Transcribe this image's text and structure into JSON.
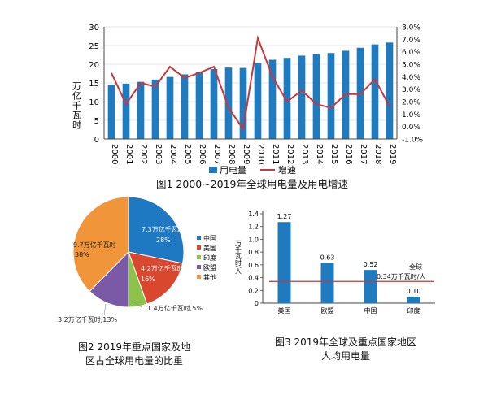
{
  "fig1": {
    "caption": "图1  2000~2019年全球用电量及用电增速",
    "y_left_label": "万亿千瓦时",
    "legend": {
      "bar": "用电量",
      "line": "增速"
    },
    "colors": {
      "bar": "#1f7bc0",
      "line": "#c8373a",
      "grid": "#cfcfcf",
      "axis": "#444444"
    },
    "y_left_ticks": [
      "0",
      "5",
      "10",
      "15",
      "20",
      "25",
      "30"
    ],
    "y_right_ticks": [
      "-1.0%",
      "0.0%",
      "1.0%",
      "2.0%",
      "3.0%",
      "4.0%",
      "5.0%",
      "6.0%",
      "7.0%",
      "8.0%"
    ]
  },
  "fig2": {
    "caption_line1": "图2  2019年重点国家及地",
    "caption_line2": "区占全球用电量的比重",
    "legend": [
      "中国",
      "美国",
      "印度",
      "欧盟",
      "其他"
    ],
    "labels": {
      "china_value": "7.3万亿千瓦时",
      "china_pct": "28%",
      "us_value": "4.2万亿千瓦时",
      "us_pct": "16%",
      "india_value": "1.4万亿千瓦时,5%",
      "eu_value": "3.2万亿千瓦时,13%",
      "other_value": "9.7万亿千瓦时",
      "other_pct": "38%"
    }
  },
  "fig3": {
    "caption_line1": "图3  2019年全球及重点国家地区",
    "caption_line2": "人均用电量",
    "y_label": "万千瓦时/人",
    "global_label_1": "全球",
    "global_label_2": "0.34万千瓦时/人",
    "y_ticks": [
      "0",
      "0.2",
      "0.4",
      "0.6",
      "0.8",
      "1.0",
      "1.2",
      "1.4"
    ]
  },
  "chart_data": [
    {
      "type": "bar",
      "title": "图1  2000~2019年全球用电量及用电增速",
      "ylabel": "万亿千瓦时",
      "categories": [
        "2000",
        "2001",
        "2002",
        "2003",
        "2004",
        "2005",
        "2006",
        "2007",
        "2008",
        "2009",
        "2010",
        "2011",
        "2012",
        "2013",
        "2014",
        "2015",
        "2016",
        "2017",
        "2018",
        "2019"
      ],
      "ylim": [
        0,
        30
      ],
      "y2lim": [
        -1.0,
        8.0
      ],
      "series": [
        {
          "name": "用电量",
          "type": "bar",
          "axis": "left",
          "values": [
            14.5,
            14.8,
            15.3,
            15.9,
            16.6,
            17.3,
            17.9,
            18.7,
            19.1,
            19.0,
            20.3,
            21.2,
            21.7,
            22.3,
            22.7,
            23.0,
            23.6,
            24.4,
            25.3,
            25.8
          ]
        },
        {
          "name": "增速",
          "type": "line",
          "axis": "right",
          "unit": "%",
          "values": [
            4.3,
            1.8,
            3.5,
            3.2,
            4.8,
            3.9,
            4.3,
            4.8,
            1.5,
            -0.2,
            7.1,
            4.0,
            2.0,
            2.9,
            1.8,
            1.5,
            2.6,
            2.6,
            3.8,
            1.6
          ]
        }
      ],
      "legend": "bottom",
      "grid": true
    },
    {
      "type": "pie",
      "title": "图2  2019年重点国家及地区占全球用电量的比重",
      "categories": [
        "中国",
        "美国",
        "印度",
        "欧盟",
        "其他"
      ],
      "values": [
        7.3,
        4.2,
        1.4,
        3.2,
        9.7
      ],
      "percent": [
        28,
        16,
        5,
        13,
        38
      ],
      "unit": "万亿千瓦时",
      "colors": [
        "#1e78c2",
        "#d9472f",
        "#8dc34a",
        "#7a5aa6",
        "#f0953a"
      ],
      "legend": "right"
    },
    {
      "type": "bar",
      "title": "图3  2019年全球及重点国家地区人均用电量",
      "ylabel": "万千瓦时/人",
      "categories": [
        "美国",
        "欧盟",
        "中国",
        "印度"
      ],
      "values": [
        1.27,
        0.63,
        0.52,
        0.1
      ],
      "value_labels": [
        "1.27",
        "0.63",
        "0.52",
        "0.10"
      ],
      "reference_line": {
        "label": "全球 0.34万千瓦时/人",
        "value": 0.34
      },
      "ylim": [
        0,
        1.4
      ],
      "grid": false
    }
  ]
}
